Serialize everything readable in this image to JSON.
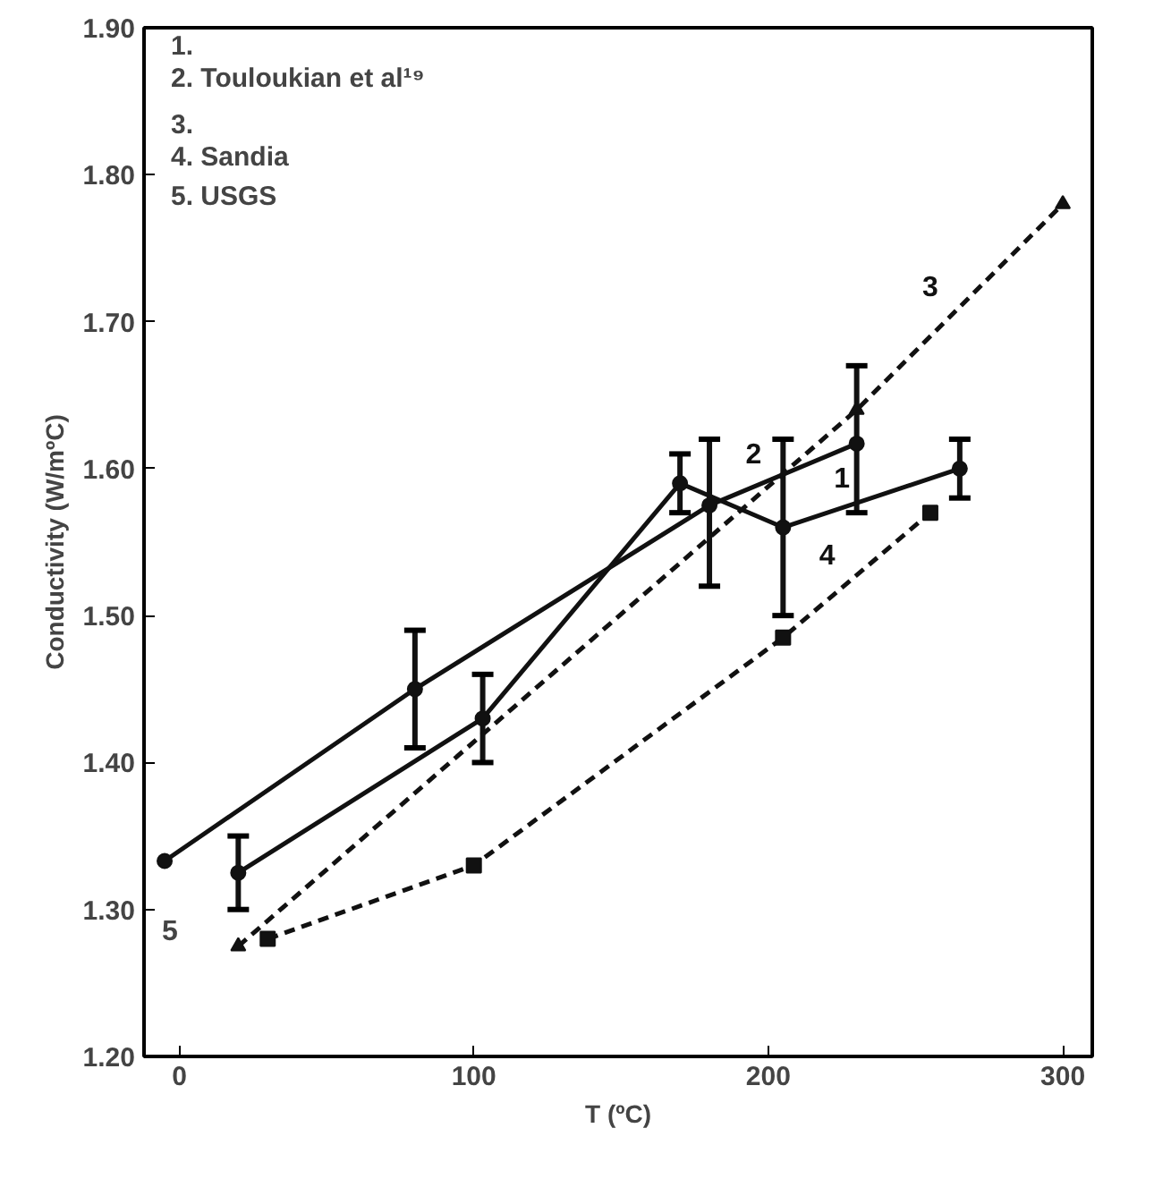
{
  "chart_data": {
    "type": "line",
    "xlabel": "T (ºC)",
    "ylabel": "Conductivity (W/mºC)",
    "xlim": [
      -12,
      310
    ],
    "ylim": [
      1.2,
      1.9
    ],
    "xticks": [
      0,
      100,
      200,
      300
    ],
    "yticks": [
      {
        "value": 1.2,
        "label": "1.20"
      },
      {
        "value": 1.3,
        "label": "1.30"
      },
      {
        "value": 1.4,
        "label": "1.40"
      },
      {
        "value": 1.5,
        "label": "1.50"
      },
      {
        "value": 1.6,
        "label": "1.60"
      },
      {
        "value": 1.7,
        "label": "1.70"
      },
      {
        "value": 1.8,
        "label": "1.80"
      },
      {
        "value": 1.9,
        "label": "1.90"
      }
    ],
    "grid": false,
    "series": [
      {
        "name": "1",
        "color": "#111111",
        "line_style": "solid",
        "marker": "circle",
        "x": [
          20,
          103,
          170,
          205,
          265
        ],
        "values": [
          1.325,
          1.43,
          1.59,
          1.56,
          1.6
        ],
        "errors": [
          [
            1.3,
            1.35
          ],
          [
            1.4,
            1.46
          ],
          [
            1.57,
            1.61
          ],
          [
            1.5,
            1.62
          ],
          [
            1.58,
            1.62
          ]
        ]
      },
      {
        "name": "2",
        "color": "#111111",
        "line_style": "solid",
        "marker": "circle",
        "x": [
          -5,
          80,
          180,
          230
        ],
        "values": [
          1.333,
          1.45,
          1.575,
          1.617
        ],
        "errors": [
          null,
          [
            1.41,
            1.49
          ],
          [
            1.52,
            1.62
          ],
          [
            1.57,
            1.67
          ]
        ]
      },
      {
        "name": "3",
        "color": "#111111",
        "line_style": "dashed",
        "marker": "triangle",
        "x": [
          20,
          230,
          300
        ],
        "values": [
          1.275,
          1.64,
          1.78
        ]
      },
      {
        "name": "4",
        "color": "#111111",
        "line_style": "dashed",
        "marker": "square",
        "x": [
          30,
          100,
          205,
          255
        ],
        "values": [
          1.28,
          1.33,
          1.485,
          1.57
        ]
      }
    ],
    "annotations": [
      "1.",
      "2. Touloukian et al¹⁹",
      "3.",
      "4. Sandia",
      "5. USGS",
      "5"
    ]
  }
}
